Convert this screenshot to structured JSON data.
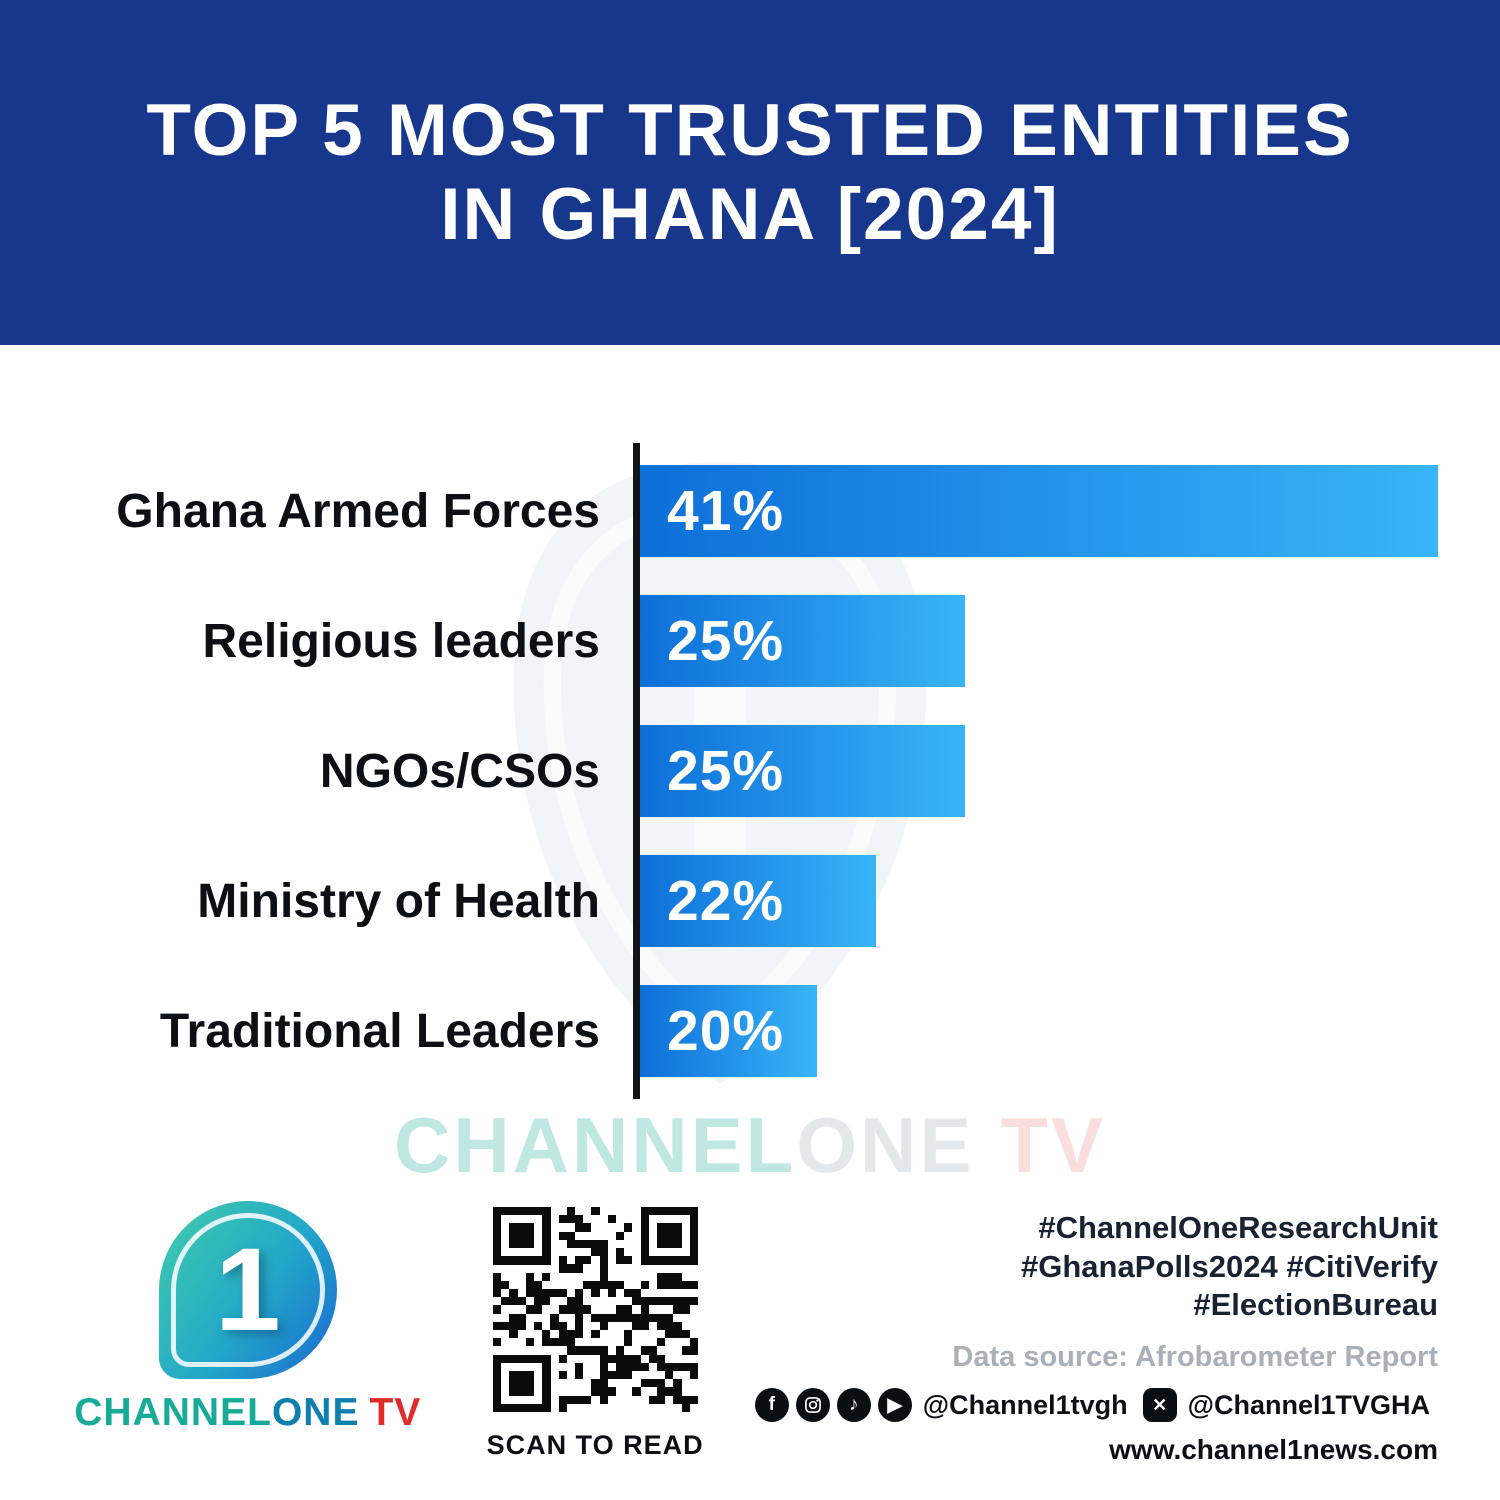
{
  "header": {
    "title_line1": "TOP 5 MOST TRUSTED ENTITIES",
    "title_line2": "IN GHANA [2024]"
  },
  "chart_data": {
    "type": "bar",
    "orientation": "horizontal",
    "title": "TOP 5 MOST TRUSTED ENTITIES IN GHANA [2024]",
    "categories": [
      "Ghana Armed Forces",
      "Religious leaders",
      "NGOs/CSOs",
      "Ministry of Health",
      "Traditional Leaders"
    ],
    "values": [
      41,
      25,
      25,
      22,
      20
    ],
    "value_labels": [
      "41%",
      "25%",
      "25%",
      "22%",
      "20%"
    ],
    "unit": "%",
    "xlim": [
      14,
      41
    ],
    "grid": false,
    "legend": false,
    "bar_gradient": [
      "#0d6fd8",
      "#38b5f9"
    ],
    "axis_color": "#101418"
  },
  "watermark": {
    "channel": "CHANNEL",
    "one": "ONE",
    "tv": "TV"
  },
  "footer": {
    "logo": {
      "digit": "1",
      "word_channel": "CHANNEL",
      "word_one": "ONE",
      "word_tv": "TV"
    },
    "qr_caption": "SCAN TO READ",
    "hashtags_line1": "#ChannelOneResearchUnit",
    "hashtags_line2": "#GhanaPolls2024 #CitiVerify",
    "hashtags_line3": "#ElectionBureau",
    "data_source": "Data source: Afrobarometer Report",
    "social": {
      "handle_primary": "@Channel1tvgh",
      "handle_x": "@Channel1TVGHA"
    },
    "website": "www.channel1news.com"
  },
  "colors": {
    "header_bg": "#17378c",
    "accent_red": "#e02b2b",
    "brand_teal": "#23b3a2"
  }
}
